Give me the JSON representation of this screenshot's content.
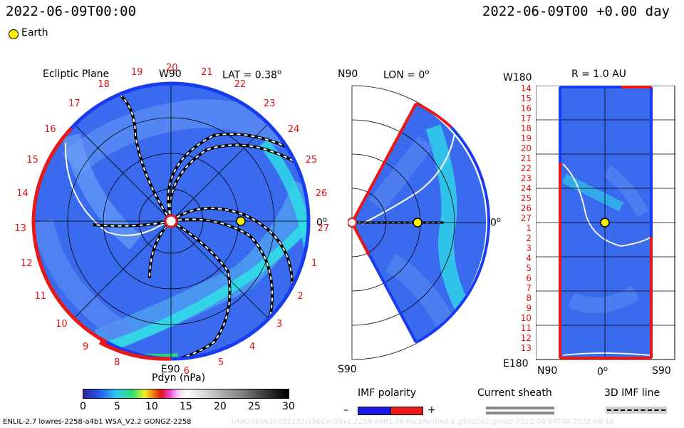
{
  "header": {
    "left_time": "2022-06-09T00:00",
    "right_time": "2022-06-09T00 +0.00 day",
    "legend_earth": "Earth"
  },
  "colors": {
    "blue_bg": "#3a6aee",
    "deep_blue": "#2c4fe0",
    "cyan": "#2ee0e6",
    "red_boundary": "#e81818",
    "blue_boundary": "#1a3cf0",
    "earth": "#ffee00"
  },
  "panels": {
    "ecliptic": {
      "title": "Ecliptic Plane",
      "top_label": "W90",
      "bottom_label": "E90",
      "lat_label": "LAT = 0.38",
      "right_label": "0",
      "sector_numbers": [
        "20",
        "21",
        "22",
        "23",
        "24",
        "25",
        "26",
        "27",
        "1",
        "2",
        "3",
        "4",
        "5",
        "6",
        "E90",
        "8",
        "9",
        "10",
        "11",
        "12",
        "13",
        "14",
        "15",
        "16",
        "17",
        "18",
        "19"
      ]
    },
    "meridional": {
      "top_label": "N90",
      "bottom_label": "S90",
      "lon_label": "LON = 0",
      "right_label": "0"
    },
    "sphere": {
      "title": "R = 1.0 AU",
      "top_left": "W180",
      "bottom_left": "E180",
      "x_labels": [
        "N90",
        "0",
        "S90"
      ],
      "y_labels": [
        "14",
        "15",
        "16",
        "17",
        "18",
        "19",
        "20",
        "21",
        "22",
        "23",
        "24",
        "25",
        "26",
        "27",
        "1",
        "2",
        "3",
        "4",
        "5",
        "6",
        "7",
        "8",
        "9",
        "10",
        "11",
        "12",
        "13"
      ]
    }
  },
  "colorbar": {
    "title": "Pdyn (nPa)",
    "ticks": [
      "0",
      "5",
      "10",
      "15",
      "20",
      "25",
      "30"
    ]
  },
  "legends": {
    "imf_title": "IMF polarity",
    "imf_minus": "–",
    "imf_plus": "+",
    "sheath_title": "Current sheath",
    "imf3d_title": "3D IMF line"
  },
  "footer": {
    "model": "ENLIL-2.7 lowres-2258-a4b1 WSA_V2.2 GONGZ-2258",
    "watermark": "UNIQUE0610182237/2561ac90x1.2258-a4b1.36-nscpfuntled-1.g53q5d2.gongz-2022-06-09T00 2022-06-10"
  },
  "chart_data": {
    "type": "heatmap",
    "quantity": "Pdyn (nPa)",
    "range": [
      0,
      30
    ],
    "earth_position": {
      "radius_au": 1.0,
      "longitude_deg": 0,
      "latitude_deg": 0.38
    },
    "panels": [
      "Ecliptic Plane",
      "Meridional plane LON = 0",
      "Sphere R = 1.0 AU"
    ]
  }
}
